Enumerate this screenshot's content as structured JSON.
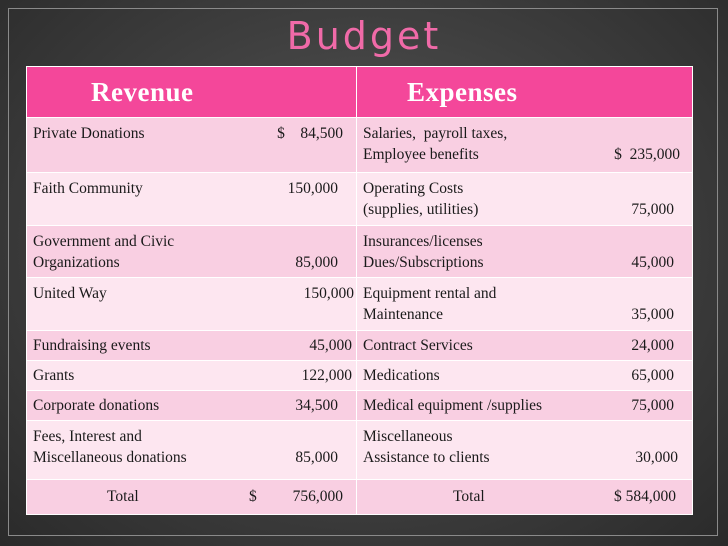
{
  "title": "Budget",
  "headers": {
    "revenue": "Revenue",
    "expenses": "Expenses"
  },
  "rows": [
    {
      "rev_label": "Private Donations",
      "rev_amount": "$    84,500",
      "exp_label": "Salaries,  payroll taxes,\nEmployee benefits",
      "exp_amount": "$  235,000"
    },
    {
      "rev_label": "Faith Community",
      "rev_amount": "150,000",
      "exp_label": "Operating Costs\n(supplies, utilities)",
      "exp_amount": "75,000"
    },
    {
      "rev_label": "Government and Civic\nOrganizations",
      "rev_amount": "85,000",
      "exp_label": "Insurances/licenses\nDues/Subscriptions",
      "exp_amount": "45,000"
    },
    {
      "rev_label": "United Way",
      "rev_amount": "150,000",
      "exp_label": "Equipment rental and\nMaintenance",
      "exp_amount": "35,000"
    },
    {
      "rev_label": "Fundraising events",
      "rev_amount": "45,000",
      "exp_label": "Contract Services",
      "exp_amount": "24,000"
    },
    {
      "rev_label": "Grants",
      "rev_amount": "122,000",
      "exp_label": "Medications",
      "exp_amount": "65,000"
    },
    {
      "rev_label": "Corporate donations",
      "rev_amount": "34,500",
      "exp_label": "Medical equipment /supplies",
      "exp_amount": "75,000"
    },
    {
      "rev_label": "Fees, Interest and\nMiscellaneous donations",
      "rev_amount": "85,000",
      "exp_label": "Miscellaneous\nAssistance to clients",
      "exp_amount": "30,000"
    }
  ],
  "totals": {
    "rev_label": "Total",
    "rev_currency": "$",
    "rev_amount": "756,000",
    "exp_label": "Total",
    "exp_amount": "$ 584,000"
  }
}
